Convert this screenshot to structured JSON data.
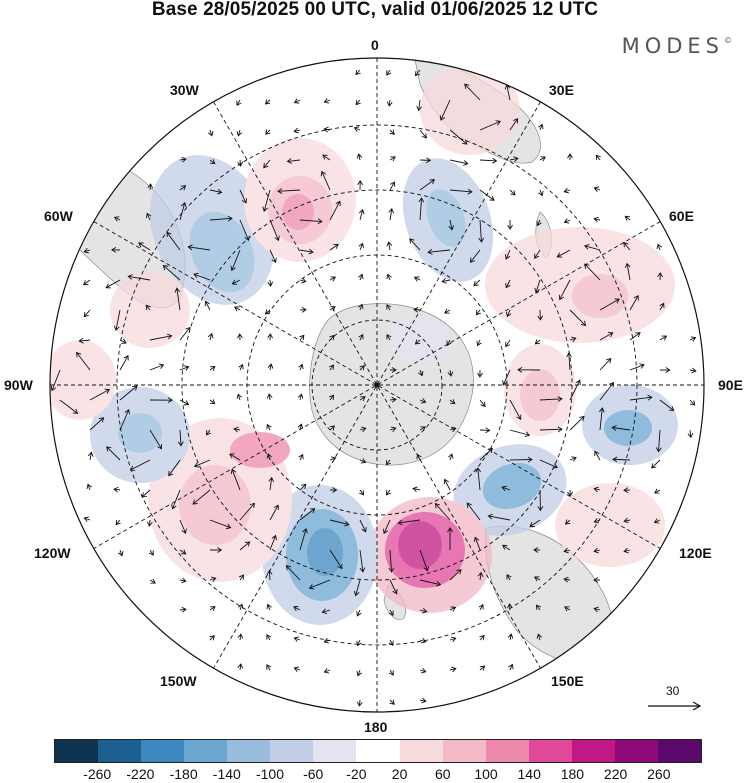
{
  "header": {
    "title": "Base 28/05/2025 00 UTC, valid 01/06/2025 12 UTC",
    "brand": "MODES",
    "brand_mark": "©"
  },
  "map": {
    "projection": "south-polar-stereographic",
    "longitude_labels": {
      "lon_0": "0",
      "lon_30e": "30E",
      "lon_60e": "60E",
      "lon_90e": "90E",
      "lon_120e": "120E",
      "lon_150e": "150E",
      "lon_180": "180",
      "lon_150w": "150W",
      "lon_120w": "120W",
      "lon_90w": "90W",
      "lon_60w": "60W",
      "lon_30w": "30W"
    },
    "reference_vector": {
      "value": "30"
    }
  },
  "colorbar": {
    "ticks": [
      "-260",
      "-220",
      "-180",
      "-140",
      "-100",
      "-60",
      "-20",
      "20",
      "60",
      "100",
      "140",
      "180",
      "220",
      "260"
    ],
    "colors": [
      "#0e3350",
      "#1e5f92",
      "#3c87bf",
      "#6aa6d0",
      "#97bcdd",
      "#c2cde6",
      "#e3e4f0",
      "#ffffff",
      "#f7dadc",
      "#f3b9c6",
      "#ee88ac",
      "#e0489a",
      "#c01884",
      "#8c0a7a",
      "#5a0a6a"
    ]
  }
}
